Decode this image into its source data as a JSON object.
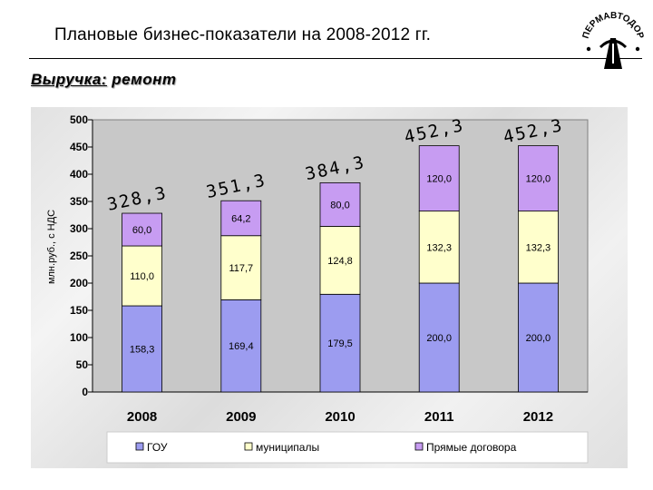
{
  "header": {
    "title": "Плановые бизнес-показатели на 2008-2012 гг.",
    "logo_text": "ПЕРМАВТОДОР",
    "section_label": "Выручка:",
    "section_sub": "ремонт"
  },
  "colors": {
    "gou": "#9c9cf0",
    "municipal": "#ffffcc",
    "direct": "#c79cf2",
    "plot_bg": "#c8c8c8"
  },
  "chart_data": {
    "type": "bar",
    "stacked": true,
    "categories": [
      "2008",
      "2009",
      "2010",
      "2011",
      "2012"
    ],
    "series": [
      {
        "name": "ГОУ",
        "values": [
          158.3,
          169.4,
          179.5,
          200.0,
          200.0
        ],
        "labels": [
          "158,3",
          "169,4",
          "179,5",
          "200,0",
          "200,0"
        ]
      },
      {
        "name": "муниципалы",
        "values": [
          110.0,
          117.7,
          124.8,
          132.3,
          132.3
        ],
        "labels": [
          "110,0",
          "117,7",
          "124,8",
          "132,3",
          "132,3"
        ]
      },
      {
        "name": "Прямые договора",
        "values": [
          60.0,
          64.2,
          80.0,
          120.0,
          120.0
        ],
        "labels": [
          "60,0",
          "64,2",
          "80,0",
          "120,0",
          "120,0"
        ]
      }
    ],
    "totals": [
      328.3,
      351.3,
      384.3,
      452.3,
      452.3
    ],
    "total_labels": [
      "328,3",
      "351,3",
      "384,3",
      "452,3",
      "452,3"
    ],
    "ylabel": "млн.руб., с НДС",
    "ylim": [
      0,
      500
    ],
    "yticks": [
      "0",
      "50",
      "100",
      "150",
      "200",
      "250",
      "300",
      "350",
      "400",
      "450",
      "500"
    ],
    "grid": false,
    "legend": "bottom"
  }
}
